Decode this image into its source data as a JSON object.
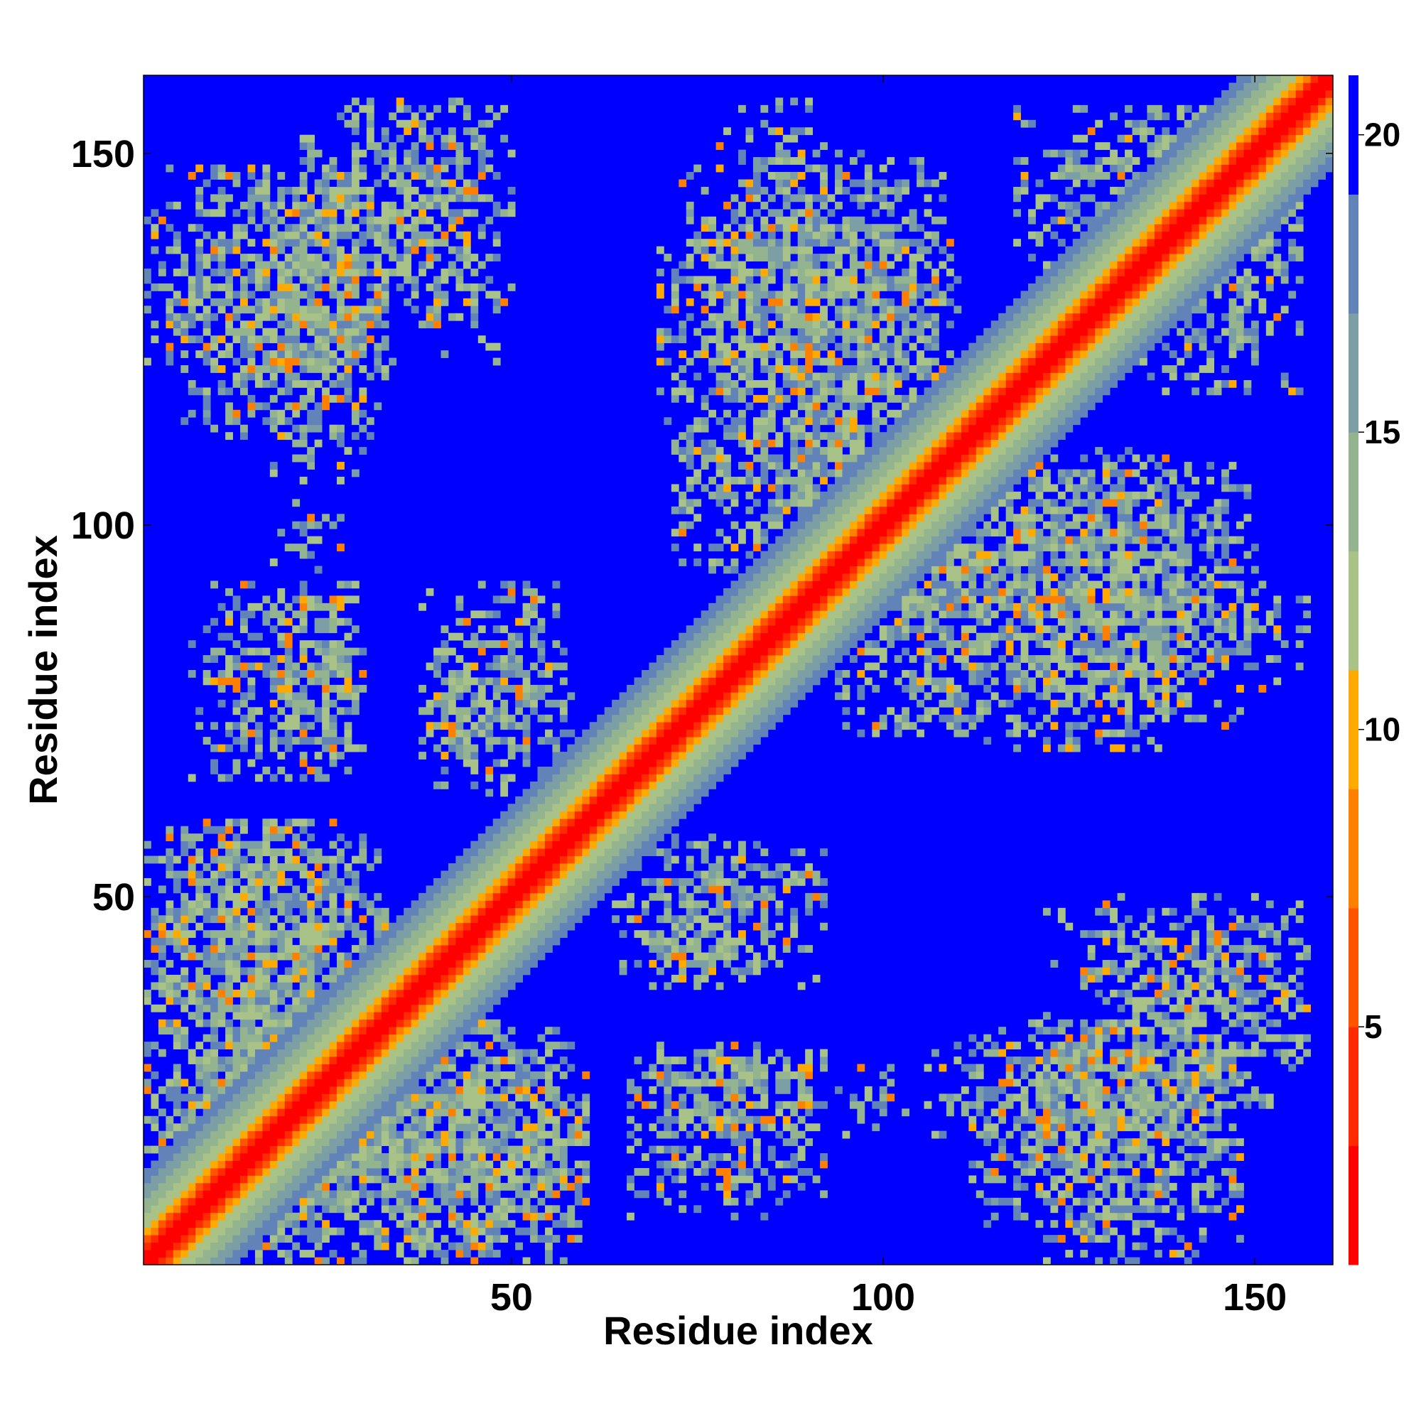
{
  "chart_data": {
    "type": "heatmap",
    "title": "",
    "xlabel": "Residue index",
    "ylabel": "Residue index",
    "n_residues": 160,
    "xlim": [
      1,
      160
    ],
    "ylim": [
      1,
      160
    ],
    "x_ticks": [
      "50",
      "100",
      "150"
    ],
    "y_ticks": [
      "50",
      "100",
      "150"
    ],
    "colorbar": {
      "ticks": [
        "5",
        "10",
        "15",
        "20"
      ],
      "range": [
        1,
        21
      ],
      "colors": [
        "#ff0000",
        "#ff2a00",
        "#ff5500",
        "#ff8000",
        "#ffaa00",
        "#a9c288",
        "#93b48e",
        "#7c9ea5",
        "#6183b8",
        "#0000ff"
      ]
    },
    "contact_blocks": [
      {
        "x": [
          1,
          33
        ],
        "y": [
          121,
          148
        ],
        "density": 0.72
      },
      {
        "x": [
          18,
          33
        ],
        "y": [
          106,
          150
        ],
        "density": 0.55
      },
      {
        "x": [
          33,
          50
        ],
        "y": [
          122,
          156
        ],
        "density": 0.35
      },
      {
        "x": [
          7,
          29
        ],
        "y": [
          66,
          92
        ],
        "density": 0.55
      },
      {
        "x": [
          38,
          58
        ],
        "y": [
          68,
          92
        ],
        "density": 0.45
      },
      {
        "x": [
          1,
          30
        ],
        "y": [
          1,
          60
        ],
        "density": 0.78
      },
      {
        "x": [
          30,
          60
        ],
        "y": [
          1,
          33
        ],
        "density": 0.72
      },
      {
        "x": [
          64,
          84
        ],
        "y": [
          38,
          57
        ],
        "density": 0.55
      },
      {
        "x": [
          66,
          92
        ],
        "y": [
          18,
          30
        ],
        "density": 0.6
      },
      {
        "x": [
          94,
          104
        ],
        "y": [
          18,
          28
        ],
        "density": 0.35
      },
      {
        "x": [
          112,
          133
        ],
        "y": [
          4,
          30
        ],
        "density": 0.62
      },
      {
        "x": [
          130,
          157
        ],
        "y": [
          22,
          50
        ],
        "density": 0.55
      },
      {
        "x": [
          73,
          108
        ],
        "y": [
          118,
          150
        ],
        "density": 0.7
      },
      {
        "x": [
          72,
          110
        ],
        "y": [
          93,
          120
        ],
        "density": 0.72
      },
      {
        "x": [
          110,
          140
        ],
        "y": [
          70,
          110
        ],
        "density": 0.72
      },
      {
        "x": [
          128,
          156
        ],
        "y": [
          118,
          156
        ],
        "density": 0.55
      },
      {
        "x": [
          138,
          157
        ],
        "y": [
          78,
          92
        ],
        "density": 0.35
      }
    ]
  }
}
